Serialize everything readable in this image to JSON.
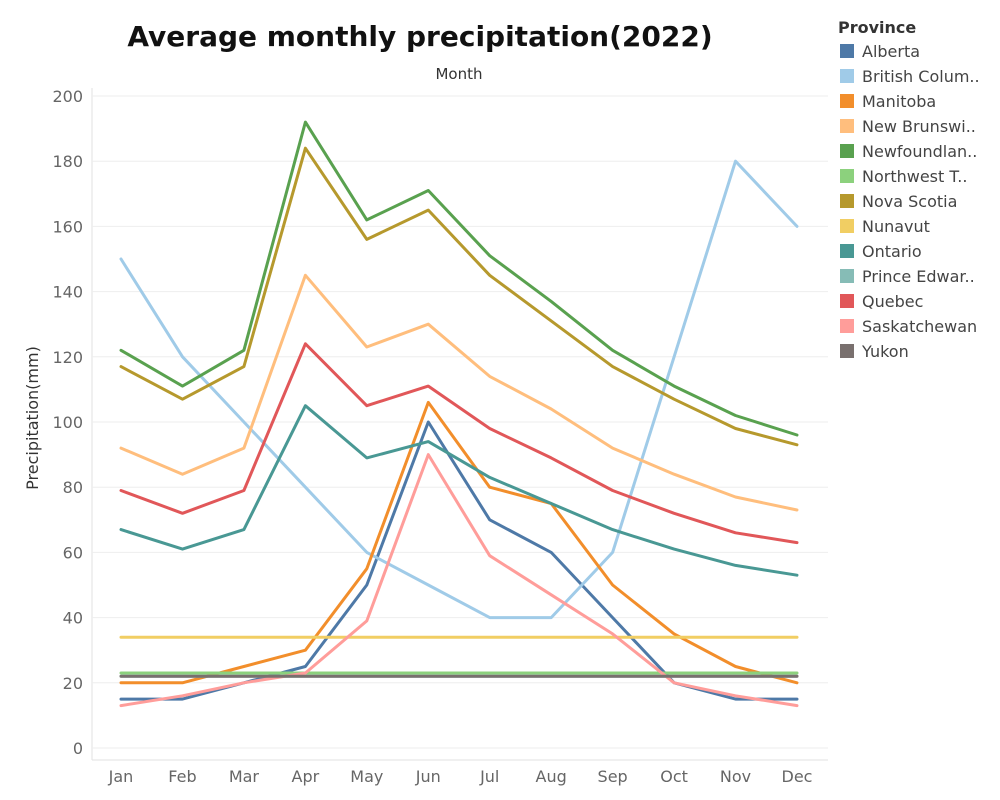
{
  "chart_data": {
    "type": "line",
    "title": "Average monthly precipitation(2022)",
    "x_group_label": "Month",
    "ylabel": "Precipitation(mm)",
    "xlabel": "",
    "categories": [
      "Jan",
      "Feb",
      "Mar",
      "Apr",
      "May",
      "Jun",
      "Jul",
      "Aug",
      "Sep",
      "Oct",
      "Nov",
      "Dec"
    ],
    "ylim": [
      0,
      200
    ],
    "yticks": [
      0,
      20,
      40,
      60,
      80,
      100,
      120,
      140,
      160,
      180,
      200
    ],
    "grid": true,
    "legend_position": "right",
    "legend_title": "Province",
    "series": [
      {
        "name": "Alberta",
        "legend_label": "Alberta",
        "color": "#4e79a7",
        "values": [
          15,
          15,
          20,
          25,
          50,
          100,
          70,
          60,
          40,
          20,
          15,
          15
        ]
      },
      {
        "name": "British Columbia",
        "legend_label": "British Colum..",
        "color": "#a0cbe8",
        "values": [
          150,
          120,
          100,
          80,
          60,
          50,
          40,
          40,
          60,
          120,
          180,
          160
        ]
      },
      {
        "name": "Manitoba",
        "legend_label": "Manitoba",
        "color": "#f28e2b",
        "values": [
          20,
          20,
          25,
          30,
          55,
          106,
          80,
          75,
          50,
          35,
          25,
          20
        ]
      },
      {
        "name": "New Brunswick",
        "legend_label": "New Brunswi..",
        "color": "#ffbe7d",
        "values": [
          92,
          84,
          92,
          145,
          123,
          130,
          114,
          104,
          92,
          84,
          77,
          73
        ]
      },
      {
        "name": "Newfoundland",
        "legend_label": "Newfoundlan..",
        "color": "#59a14f",
        "values": [
          122,
          111,
          122,
          192,
          162,
          171,
          151,
          137,
          122,
          111,
          102,
          96
        ]
      },
      {
        "name": "Northwest Territories",
        "legend_label": "Northwest T..",
        "color": "#8cd17d",
        "values": [
          23,
          23,
          23,
          23,
          23,
          23,
          23,
          23,
          23,
          23,
          23,
          23
        ]
      },
      {
        "name": "Nova Scotia",
        "legend_label": "Nova Scotia",
        "color": "#b6992d",
        "values": [
          117,
          107,
          117,
          184,
          156,
          165,
          145,
          131,
          117,
          107,
          98,
          93
        ]
      },
      {
        "name": "Nunavut",
        "legend_label": "Nunavut",
        "color": "#f1ce63",
        "values": [
          34,
          34,
          34,
          34,
          34,
          34,
          34,
          34,
          34,
          34,
          34,
          34
        ]
      },
      {
        "name": "Ontario",
        "legend_label": "Ontario",
        "color": "#499894",
        "values": [
          67,
          61,
          67,
          105,
          89,
          94,
          83,
          75,
          67,
          61,
          56,
          53
        ]
      },
      {
        "name": "Prince Edward Island",
        "legend_label": "Prince Edwar..",
        "color": "#86bcb6",
        "values": [
          22,
          22,
          22,
          22,
          22,
          22,
          22,
          22,
          22,
          22,
          22,
          22
        ]
      },
      {
        "name": "Quebec",
        "legend_label": "Quebec",
        "color": "#e15759",
        "values": [
          79,
          72,
          79,
          124,
          105,
          111,
          98,
          89,
          79,
          72,
          66,
          63
        ]
      },
      {
        "name": "Saskatchewan",
        "legend_label": "Saskatchewan",
        "color": "#ff9d9a",
        "values": [
          13,
          16,
          20,
          23,
          39,
          90,
          59,
          47,
          35,
          20,
          16,
          13
        ]
      },
      {
        "name": "Yukon",
        "legend_label": "Yukon",
        "color": "#79706e",
        "values": [
          22,
          22,
          22,
          22,
          22,
          22,
          22,
          22,
          22,
          22,
          22,
          22
        ]
      }
    ]
  }
}
